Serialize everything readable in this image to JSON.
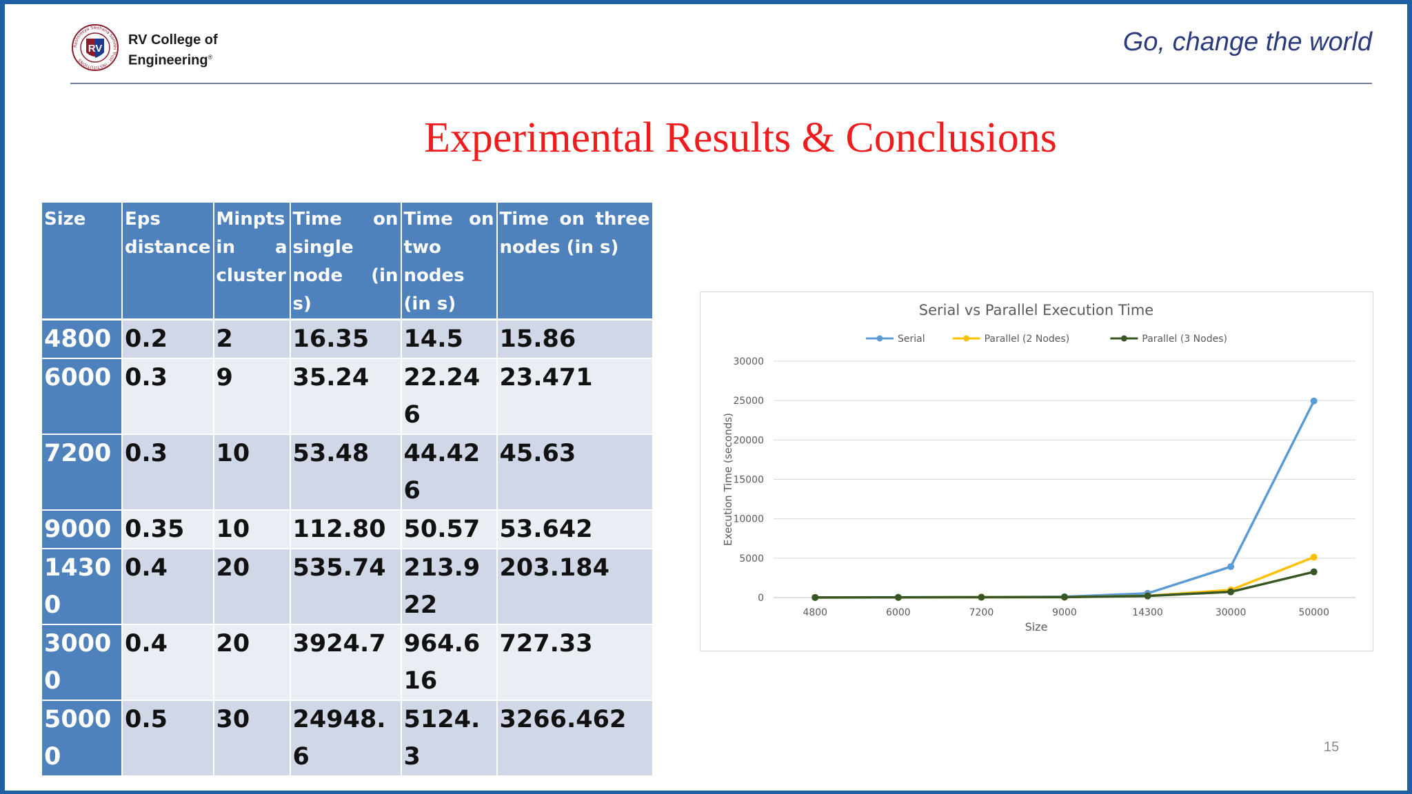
{
  "header": {
    "logo_text": "RV",
    "logo_ring_text": "Rashtreeya Sikshana Samithi Trust · INSTITUTIONS",
    "college_name_line1": "RV College of",
    "college_name_line2": "Engineering",
    "registered_mark": "®",
    "tagline": "Go, change the world"
  },
  "slide": {
    "title": "Experimental Results & Conclusions",
    "page_number": "15"
  },
  "table": {
    "headers": [
      "Size",
      "Eps distance",
      "Minpts in a cluster",
      "Time on single node (in s)",
      "Time on two nodes (in s)",
      "Time on three nodes (in s)"
    ],
    "rows": [
      [
        "4800",
        "0.2",
        "2",
        "16.35",
        "14.5",
        "15.86"
      ],
      [
        "6000",
        "0.3",
        "9",
        "35.24",
        "22.246",
        "23.471"
      ],
      [
        "7200",
        "0.3",
        "10",
        "53.48",
        "44.426",
        "45.63"
      ],
      [
        "9000",
        "0.35",
        "10",
        "112.80",
        "50.57",
        "53.642"
      ],
      [
        "14300",
        "0.4",
        "20",
        "535.74",
        "213.922",
        "203.184"
      ],
      [
        "30000",
        "0.4",
        "20",
        "3924.7",
        "964.616",
        "727.33"
      ],
      [
        "50000",
        "0.5",
        "30",
        "24948.6",
        "5124.3",
        "3266.462"
      ]
    ]
  },
  "chart_data": {
    "type": "line",
    "title": "Serial vs Parallel Execution Time",
    "xlabel": "Size",
    "ylabel": "Execution Time (seconds)",
    "categories": [
      "4800",
      "6000",
      "7200",
      "9000",
      "14300",
      "30000",
      "50000"
    ],
    "ylim": [
      0,
      30000
    ],
    "yticks": [
      0,
      5000,
      10000,
      15000,
      20000,
      25000,
      30000
    ],
    "grid": true,
    "legend_position": "top",
    "series": [
      {
        "name": "Serial",
        "color": "#5b9bd5",
        "values": [
          16.35,
          35.24,
          53.48,
          112.8,
          535.74,
          3924.7,
          24948.6
        ]
      },
      {
        "name": "Parallel (2 Nodes)",
        "color": "#ffc000",
        "values": [
          14.5,
          22.246,
          44.426,
          50.57,
          213.922,
          964.616,
          5124.3
        ]
      },
      {
        "name": "Parallel (3 Nodes)",
        "color": "#375623",
        "values": [
          15.86,
          23.471,
          45.63,
          53.642,
          203.184,
          727.33,
          3266.462
        ]
      }
    ]
  },
  "colors": {
    "frame": "#1f5fa3",
    "title_red": "#ee1c1c",
    "tagline_navy": "#2a3a7c",
    "table_header_blue": "#4f81bd",
    "table_band_dark": "#d0d8e8",
    "table_band_light": "#e9edf4"
  }
}
